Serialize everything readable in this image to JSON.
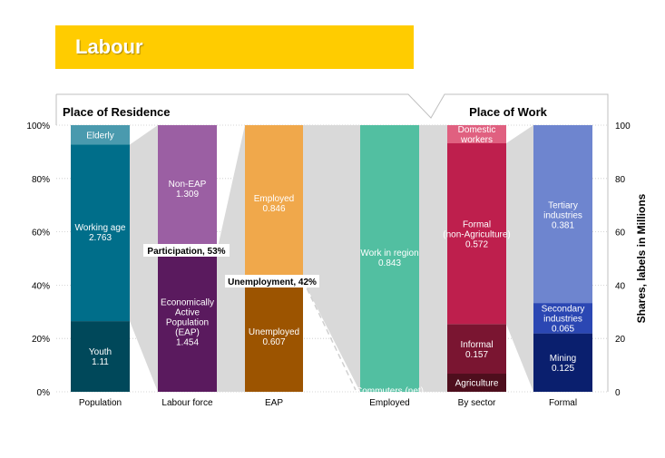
{
  "header": {
    "title": "Labour"
  },
  "colors": {
    "elderly": "#4a9aae",
    "working_age": "#006e8a",
    "youth": "#00485a",
    "non_eap": "#9b5fa3",
    "eap": "#5a1a5e",
    "employed": "#f0a84b",
    "unemployed": "#9c5400",
    "work_in_region": "#52bfa1",
    "domestic": "#e06080",
    "formal_non_agri": "#be1f4d",
    "informal": "#7a1531",
    "agriculture": "#4e0e1d",
    "tertiary": "#6e85cf",
    "secondary": "#2b47b3",
    "mining": "#0a1f6e",
    "connector": "#d9d9d9"
  },
  "chart_data": {
    "type": "bar",
    "stacked": true,
    "section_titles": {
      "left": "Place of Residence",
      "right": "Place of Work"
    },
    "left_axis": {
      "ticks": [
        "0%",
        "20%",
        "40%",
        "60%",
        "80%",
        "100%"
      ],
      "ylim": [
        0,
        100
      ]
    },
    "right_axis": {
      "ticks": [
        "0",
        "20",
        "40",
        "60",
        "80",
        "100"
      ],
      "ylim": [
        0,
        100
      ],
      "label": "Shares, labels in Millions"
    },
    "grid": true,
    "categories": [
      "Population",
      "Labour force",
      "EAP",
      "Employed",
      "By sector",
      "Formal"
    ],
    "columns": [
      {
        "category": "Population",
        "segments": [
          {
            "label": "Youth",
            "value_label": "1.11",
            "share": 26.5,
            "color_key": "youth"
          },
          {
            "label": "Working age",
            "value_label": "2.763",
            "share": 66.2,
            "color_key": "working_age"
          },
          {
            "label": "Elderly",
            "value_label": "",
            "share": 7.3,
            "color_key": "elderly"
          }
        ]
      },
      {
        "category": "Labour force",
        "segments": [
          {
            "label": "Economically Active Population (EAP)",
            "value_label": "1.454",
            "share": 52.6,
            "color_key": "eap"
          },
          {
            "label": "Non-EAP",
            "value_label": "1.309",
            "share": 47.4,
            "color_key": "non_eap"
          }
        ]
      },
      {
        "category": "EAP",
        "segments": [
          {
            "label": "Unemployed",
            "value_label": "0.607",
            "share": 41.8,
            "color_key": "unemployed"
          },
          {
            "label": "Employed",
            "value_label": "0.846",
            "share": 58.2,
            "color_key": "employed"
          }
        ]
      },
      {
        "category": "Employed",
        "segments": [
          {
            "label": "Commuters (net)",
            "value_label": "",
            "share": 0.4,
            "color_key": "work_in_region"
          },
          {
            "label": "Work in region",
            "value_label": "0.843",
            "share": 99.6,
            "color_key": "work_in_region"
          }
        ]
      },
      {
        "category": "By sector",
        "segments": [
          {
            "label": "Agriculture",
            "value_label": "",
            "share": 6.8,
            "color_key": "agriculture"
          },
          {
            "label": "Informal",
            "value_label": "0.157",
            "share": 18.6,
            "color_key": "informal"
          },
          {
            "label": "Formal (non-Agriculture)",
            "value_label": "0.572",
            "share": 67.8,
            "color_key": "formal_non_agri"
          },
          {
            "label": "Domestic workers",
            "value_label": "",
            "share": 6.8,
            "color_key": "domestic"
          }
        ]
      },
      {
        "category": "Formal",
        "segments": [
          {
            "label": "Mining",
            "value_label": "0.125",
            "share": 21.9,
            "color_key": "mining"
          },
          {
            "label": "Secondary industries",
            "value_label": "0.065",
            "share": 11.4,
            "color_key": "secondary"
          },
          {
            "label": "Tertiary industries",
            "value_label": "0.381",
            "share": 66.7,
            "color_key": "tertiary"
          }
        ]
      }
    ],
    "annotations": [
      {
        "text": "Participation, 53%",
        "value": 53
      },
      {
        "text": "Unemployment, 42%",
        "value": 42
      }
    ]
  }
}
